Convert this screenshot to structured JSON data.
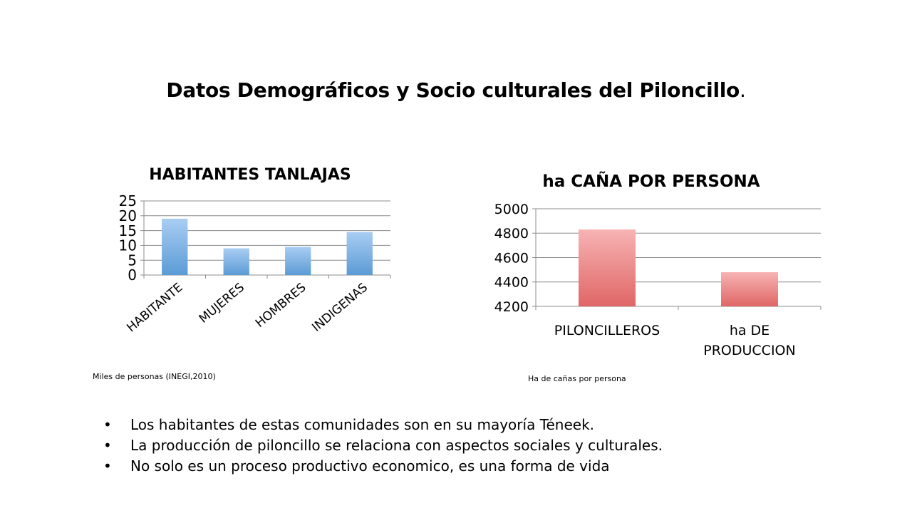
{
  "slide": {
    "title": "Datos Demográficos y Socio culturales del Piloncillo",
    "title_suffix": "."
  },
  "chart_data": [
    {
      "type": "bar",
      "title": "HABITANTES TANLAJAS",
      "categories": [
        "HABITANTE",
        "MUJERES",
        "HOMBRES",
        "INDIGENAS"
      ],
      "values": [
        19,
        9,
        9.5,
        14.5
      ],
      "ylim": [
        0,
        25
      ],
      "yticks": [
        0,
        5,
        10,
        15,
        20,
        25
      ],
      "grid": true,
      "legend": "none",
      "bar_color_top": "#a9cdf3",
      "bar_color_bottom": "#5b9bd5",
      "caption": "Miles de personas (INEGI,2010)"
    },
    {
      "type": "bar",
      "title": "ha CAÑA POR PERSONA",
      "categories": [
        "PILONCILLEROS",
        "ha DE PRODUCCION"
      ],
      "category_lines": [
        [
          "PILONCILLEROS"
        ],
        [
          "ha DE",
          "PRODUCCION"
        ]
      ],
      "values": [
        4830,
        4480
      ],
      "ylim": [
        4200,
        5000
      ],
      "yticks": [
        4200,
        4400,
        4600,
        4800,
        5000
      ],
      "grid": true,
      "legend": "none",
      "bar_color_top": "#f7b3b3",
      "bar_color_bottom": "#e06666",
      "caption": "Ha de cañas por persona"
    }
  ],
  "bullets": [
    "Los habitantes de estas comunidades son en su mayoría Téneek.",
    "La producción de piloncillo se relaciona con aspectos sociales y culturales.",
    "No solo es un proceso productivo economico, es una forma de vida"
  ]
}
